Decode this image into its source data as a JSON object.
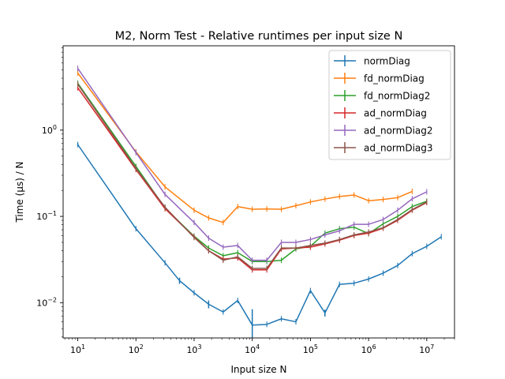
{
  "chart_data": {
    "type": "line",
    "title": "M2, Norm Test - Relative runtimes per input size N",
    "xlabel": "Input size N",
    "ylabel": "Time (µs) / N",
    "xscale": "log",
    "yscale": "log",
    "xlim": [
      5.6,
      30000000
    ],
    "ylim": [
      0.0039,
      9.5
    ],
    "x_ticks": [
      {
        "value": 10,
        "base": "10",
        "exp": "1"
      },
      {
        "value": 100,
        "base": "10",
        "exp": "2"
      },
      {
        "value": 1000,
        "base": "10",
        "exp": "3"
      },
      {
        "value": 10000,
        "base": "10",
        "exp": "4"
      },
      {
        "value": 100000,
        "base": "10",
        "exp": "5"
      },
      {
        "value": 1000000,
        "base": "10",
        "exp": "6"
      },
      {
        "value": 10000000,
        "base": "10",
        "exp": "7"
      }
    ],
    "y_ticks": [
      {
        "value": 0.01,
        "base": "10",
        "exp": "−2"
      },
      {
        "value": 0.1,
        "base": "10",
        "exp": "−1"
      },
      {
        "value": 1,
        "base": "10",
        "exp": "0"
      }
    ],
    "grid": false,
    "legend_position": "top-right",
    "series": [
      {
        "name": "normDiag",
        "color": "#1f77b4",
        "points": [
          [
            10,
            0.68
          ],
          [
            100,
            0.072
          ],
          [
            316,
            0.029
          ],
          [
            562,
            0.018
          ],
          [
            1000,
            0.013
          ],
          [
            1778,
            0.0096
          ],
          [
            3162,
            0.0078
          ],
          [
            5623,
            0.0106
          ],
          [
            10000,
            0.0055
          ],
          [
            17783,
            0.0056
          ],
          [
            31623,
            0.0065
          ],
          [
            56234,
            0.006
          ],
          [
            100000,
            0.0138
          ],
          [
            177828,
            0.0076
          ],
          [
            316228,
            0.0163
          ],
          [
            562341,
            0.0168
          ],
          [
            1000000,
            0.0188
          ],
          [
            1778279,
            0.022
          ],
          [
            3162278,
            0.027
          ],
          [
            5623413,
            0.037
          ],
          [
            10000000,
            0.045
          ],
          [
            17782794,
            0.058
          ]
        ],
        "errors": [
          [
            0,
            0.02
          ],
          [
            3,
            0.0015
          ],
          [
            5,
            0.001
          ],
          [
            8,
            0.0029
          ],
          [
            13,
            0.0007
          ]
        ]
      },
      {
        "name": "fd_normDiag",
        "color": "#ff7f0e",
        "points": [
          [
            10,
            4.6
          ],
          [
            100,
            0.56
          ],
          [
            316,
            0.22
          ],
          [
            1000,
            0.118
          ],
          [
            1778,
            0.096
          ],
          [
            3162,
            0.085
          ],
          [
            5623,
            0.13
          ],
          [
            10000,
            0.121
          ],
          [
            17783,
            0.122
          ],
          [
            31623,
            0.121
          ],
          [
            56234,
            0.133
          ],
          [
            100000,
            0.147
          ],
          [
            177828,
            0.159
          ],
          [
            316228,
            0.17
          ],
          [
            562341,
            0.177
          ],
          [
            1000000,
            0.152
          ],
          [
            1778279,
            0.157
          ],
          [
            3162278,
            0.165
          ],
          [
            5623413,
            0.195
          ]
        ]
      },
      {
        "name": "fd_normDiag2",
        "color": "#2ca02c",
        "points": [
          [
            10,
            3.5
          ],
          [
            100,
            0.38
          ],
          [
            316,
            0.125
          ],
          [
            1000,
            0.059
          ],
          [
            1778,
            0.043
          ],
          [
            3162,
            0.035
          ],
          [
            5623,
            0.038
          ],
          [
            10000,
            0.03
          ],
          [
            17783,
            0.03
          ],
          [
            31623,
            0.031
          ],
          [
            56234,
            0.042
          ],
          [
            100000,
            0.045
          ],
          [
            177828,
            0.064
          ],
          [
            316228,
            0.072
          ],
          [
            562341,
            0.075
          ],
          [
            1000000,
            0.063
          ],
          [
            1778279,
            0.082
          ],
          [
            3162278,
            0.1
          ],
          [
            5623413,
            0.13
          ],
          [
            10000000,
            0.15
          ]
        ]
      },
      {
        "name": "ad_normDiag",
        "color": "#d62728",
        "points": [
          [
            10,
            3.1
          ],
          [
            100,
            0.35
          ],
          [
            316,
            0.123
          ],
          [
            1000,
            0.058
          ],
          [
            1778,
            0.04
          ],
          [
            3162,
            0.032
          ],
          [
            5623,
            0.033
          ],
          [
            10000,
            0.024
          ],
          [
            17783,
            0.024
          ],
          [
            31623,
            0.042
          ],
          [
            56234,
            0.043
          ],
          [
            100000,
            0.044
          ],
          [
            177828,
            0.048
          ],
          [
            316228,
            0.053
          ],
          [
            562341,
            0.06
          ],
          [
            1000000,
            0.064
          ],
          [
            1778279,
            0.073
          ],
          [
            3162278,
            0.09
          ],
          [
            5623413,
            0.118
          ],
          [
            10000000,
            0.145
          ]
        ]
      },
      {
        "name": "ad_normDiag2",
        "color": "#9467bd",
        "points": [
          [
            10,
            5.2
          ],
          [
            100,
            0.55
          ],
          [
            316,
            0.18
          ],
          [
            1000,
            0.085
          ],
          [
            1778,
            0.056
          ],
          [
            3162,
            0.044
          ],
          [
            5623,
            0.046
          ],
          [
            10000,
            0.031
          ],
          [
            17783,
            0.031
          ],
          [
            31623,
            0.05
          ],
          [
            56234,
            0.05
          ],
          [
            100000,
            0.054
          ],
          [
            177828,
            0.061
          ],
          [
            316228,
            0.068
          ],
          [
            562341,
            0.081
          ],
          [
            1000000,
            0.081
          ],
          [
            1778279,
            0.092
          ],
          [
            3162278,
            0.118
          ],
          [
            5623413,
            0.16
          ],
          [
            10000000,
            0.193
          ]
        ]
      },
      {
        "name": "ad_normDiag3",
        "color": "#8c564b",
        "points": [
          [
            10,
            3.4
          ],
          [
            100,
            0.36
          ],
          [
            316,
            0.128
          ],
          [
            1000,
            0.057
          ],
          [
            1778,
            0.04
          ],
          [
            3162,
            0.031
          ],
          [
            5623,
            0.034
          ],
          [
            10000,
            0.025
          ],
          [
            17783,
            0.025
          ],
          [
            31623,
            0.043
          ],
          [
            56234,
            0.043
          ],
          [
            100000,
            0.046
          ],
          [
            177828,
            0.049
          ],
          [
            316228,
            0.054
          ],
          [
            562341,
            0.061
          ],
          [
            1000000,
            0.066
          ],
          [
            1778279,
            0.074
          ],
          [
            3162278,
            0.092
          ],
          [
            5623413,
            0.12
          ],
          [
            10000000,
            0.147
          ]
        ]
      }
    ]
  }
}
